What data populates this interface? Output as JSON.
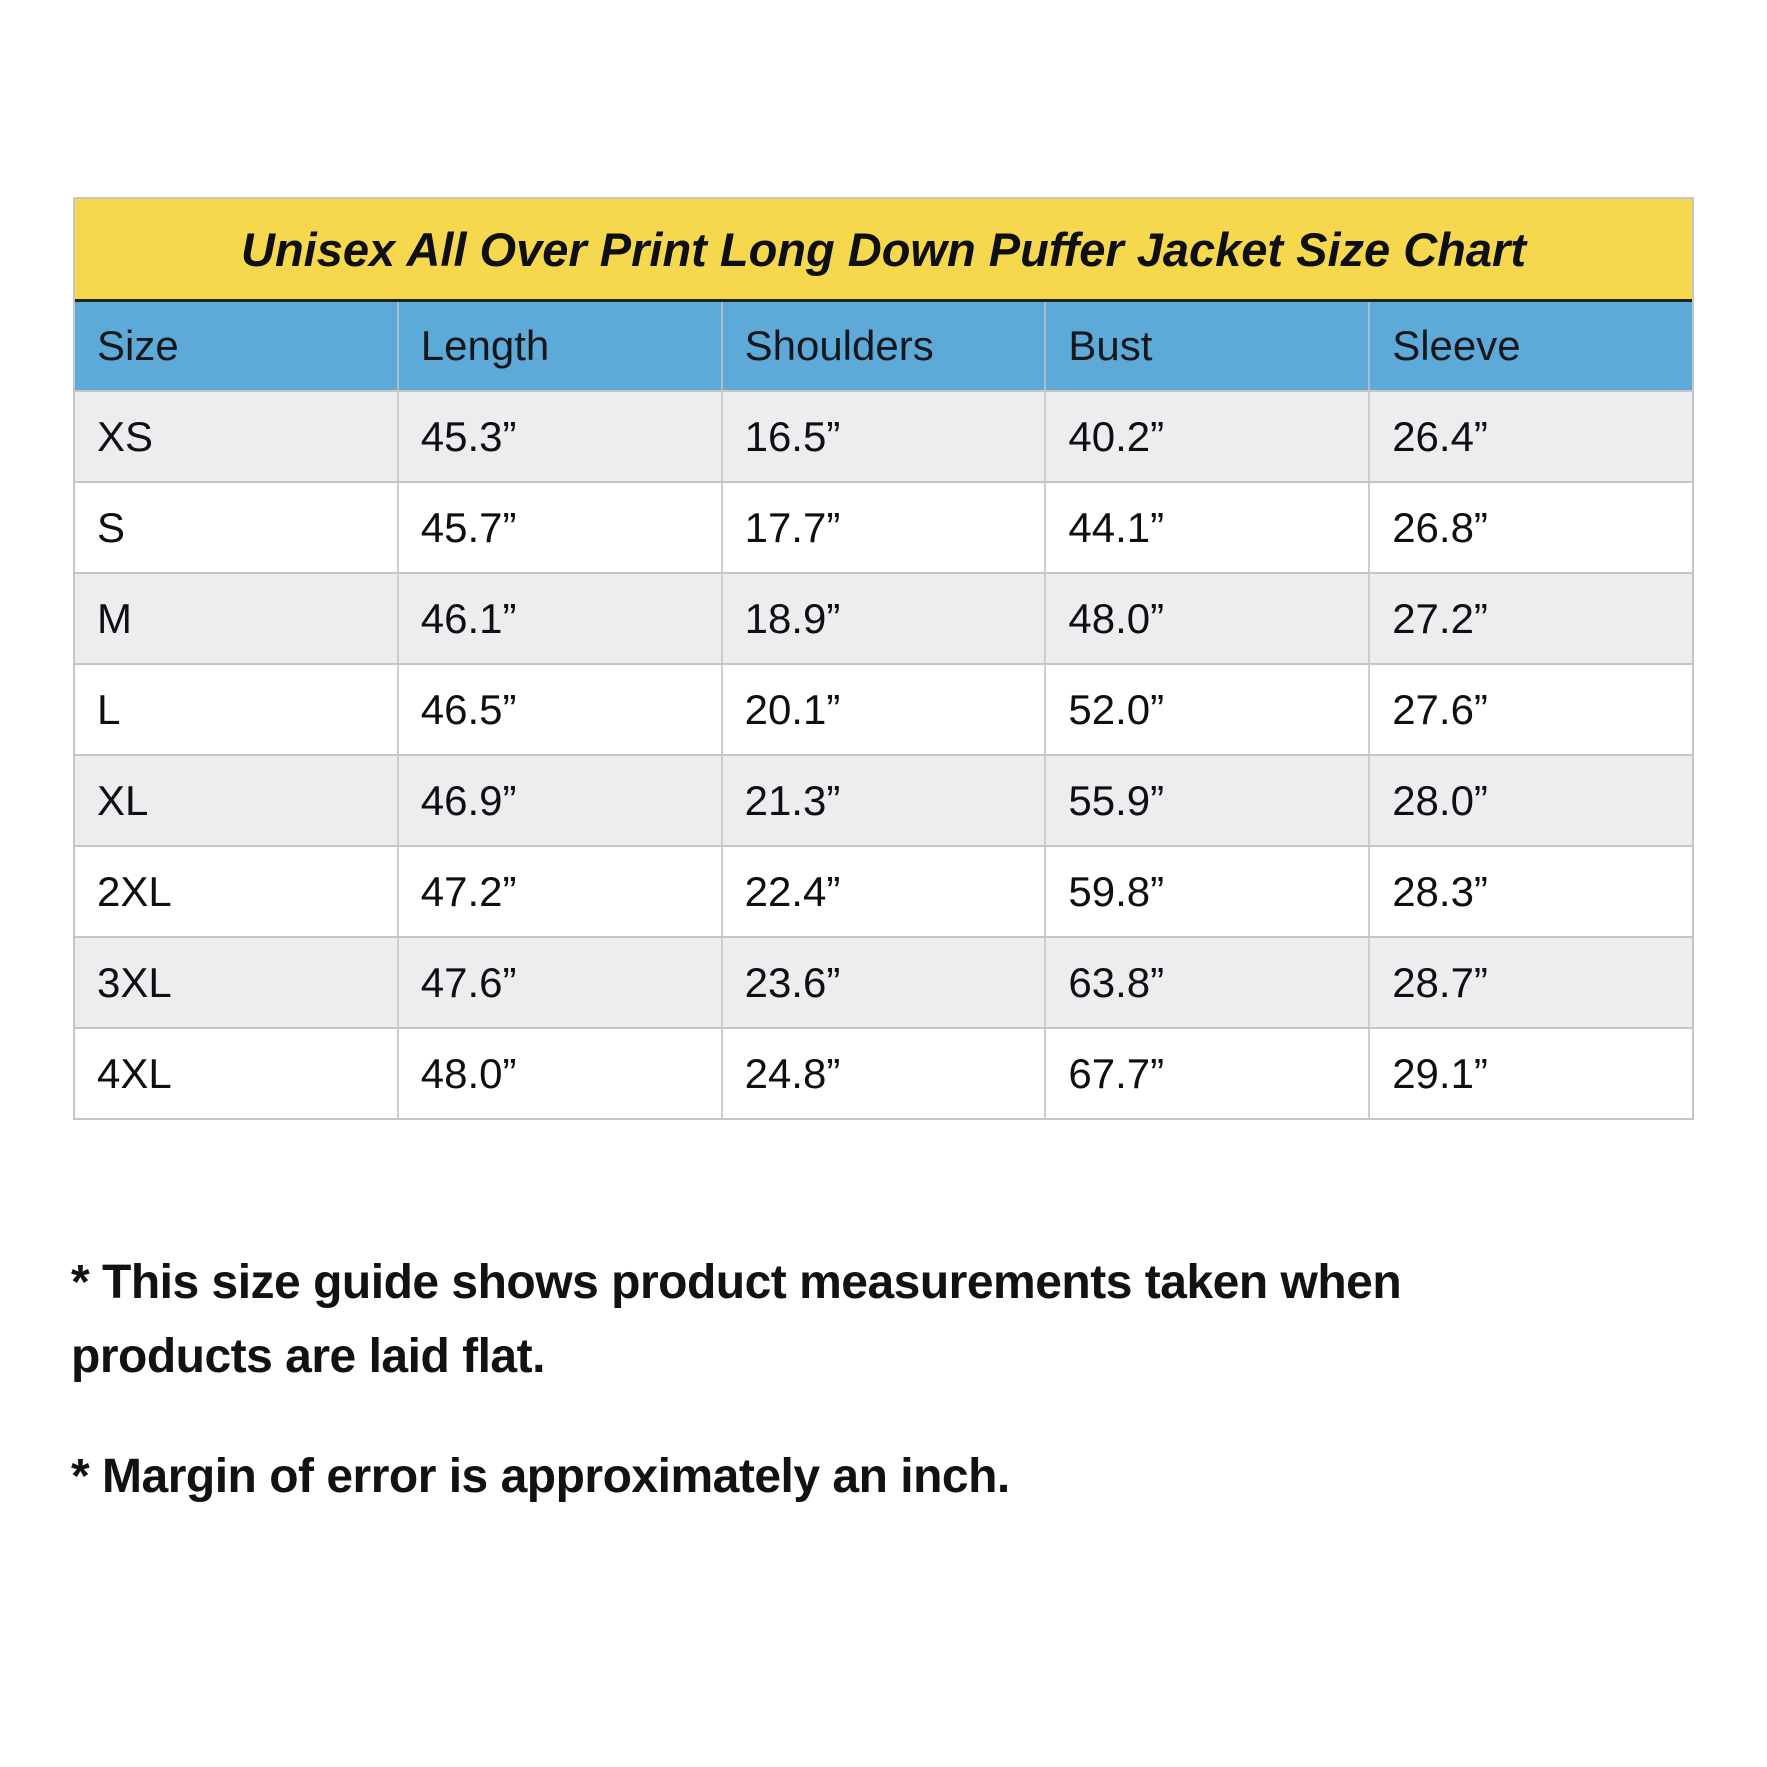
{
  "chart_data": {
    "type": "table",
    "title": "Unisex All Over Print Long Down Puffer Jacket Size Chart",
    "columns": [
      "Size",
      "Length",
      "Shoulders",
      "Bust",
      "Sleeve"
    ],
    "rows": [
      [
        "XS",
        "45.3”",
        "16.5”",
        "40.2”",
        "26.4”"
      ],
      [
        "S",
        "45.7”",
        "17.7”",
        "44.1”",
        "26.8”"
      ],
      [
        "M",
        "46.1”",
        "18.9”",
        "48.0”",
        "27.2”"
      ],
      [
        "L",
        "46.5”",
        "20.1”",
        "52.0”",
        "27.6”"
      ],
      [
        "XL",
        "46.9”",
        "21.3”",
        "55.9”",
        "28.0”"
      ],
      [
        "2XL",
        "47.2”",
        "22.4”",
        "59.8”",
        "28.3”"
      ],
      [
        "3XL",
        "47.6”",
        "23.6”",
        "63.8”",
        "28.7”"
      ],
      [
        "4XL",
        "48.0”",
        "24.8”",
        "67.7”",
        "29.1”"
      ]
    ],
    "layout": {
      "grid": "on",
      "zebra_striping": true,
      "striped_rows": [
        "XS",
        "M",
        "XL",
        "3XL"
      ]
    }
  },
  "notes": [
    {
      "lines": [
        "* This size guide shows product measurements taken when",
        "products are laid flat."
      ]
    },
    {
      "lines": [
        "* Margin of error is approximately an inch."
      ]
    }
  ],
  "colors": {
    "title_bg": "#f6d84f",
    "header_bg": "#5daad9",
    "row_bg": "#ffffff",
    "row_alt_bg": "#ededef",
    "grid_border": "#c6c6c8",
    "title_divider": "#222222",
    "text": "#0d0f12"
  }
}
